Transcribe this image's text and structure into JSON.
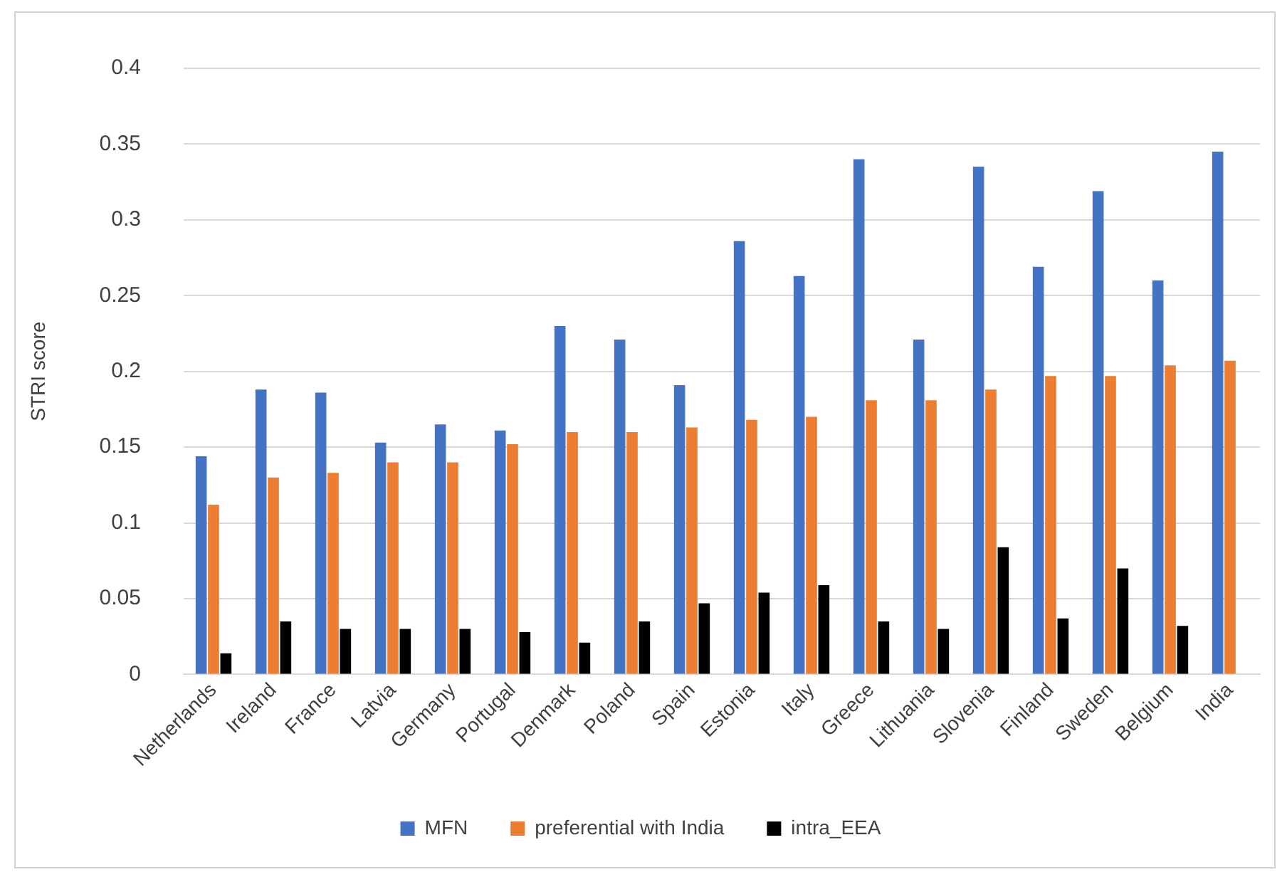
{
  "chart_data": {
    "type": "bar",
    "ylabel": "STRI score",
    "categories": [
      "Netherlands",
      "Ireland",
      "France",
      "Latvia",
      "Germany",
      "Portugal",
      "Denmark",
      "Poland",
      "Spain",
      "Estonia",
      "Italy",
      "Greece",
      "Lithuania",
      "Slovenia",
      "Finland",
      "Sweden",
      "Belgium",
      "India"
    ],
    "series": [
      {
        "name": "MFN",
        "color": "#4472c4",
        "values": [
          0.144,
          0.188,
          0.186,
          0.153,
          0.165,
          0.161,
          0.23,
          0.221,
          0.191,
          0.286,
          0.263,
          0.34,
          0.221,
          0.335,
          0.269,
          0.319,
          0.26,
          0.345
        ]
      },
      {
        "name": "preferential with India",
        "color": "#ed7d31",
        "values": [
          0.112,
          0.13,
          0.133,
          0.14,
          0.14,
          0.152,
          0.16,
          0.16,
          0.163,
          0.168,
          0.17,
          0.181,
          0.181,
          0.188,
          0.197,
          0.197,
          0.204,
          0.207
        ]
      },
      {
        "name": "intra_EEA",
        "color": "#000000",
        "values": [
          0.014,
          0.035,
          0.03,
          0.03,
          0.03,
          0.028,
          0.021,
          0.035,
          0.047,
          0.054,
          0.059,
          0.035,
          0.03,
          0.084,
          0.037,
          0.07,
          0.032,
          null
        ]
      }
    ],
    "ylim": [
      0,
      0.4
    ],
    "yticks": [
      0,
      0.05,
      0.1,
      0.15,
      0.2,
      0.25,
      0.3,
      0.35,
      0.4
    ],
    "grid": "y",
    "legend": "bottom"
  }
}
